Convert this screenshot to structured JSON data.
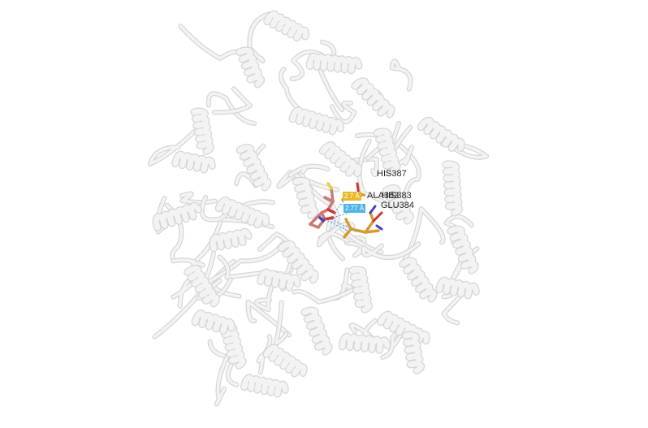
{
  "viewer": {
    "residue_labels": [
      "HIS387",
      "ALA383",
      "HIS383",
      "GLU384"
    ],
    "distance_labels": [
      "2.7 Å",
      "2.77 Å"
    ],
    "colors": {
      "background": "#ffffff",
      "cartoon": "#f3f3f3",
      "cartoon_edge": "#d6d6d6",
      "ligand": "#c97a74",
      "residues": "#d89a2c",
      "oxygen": "#d43333",
      "nitrogen": "#3d46c8",
      "sulfur": "#e8d23a",
      "hbond": "#5aa9e0",
      "badge_yellow": "#e9b92a",
      "badge_blue": "#4fb3e8"
    }
  }
}
